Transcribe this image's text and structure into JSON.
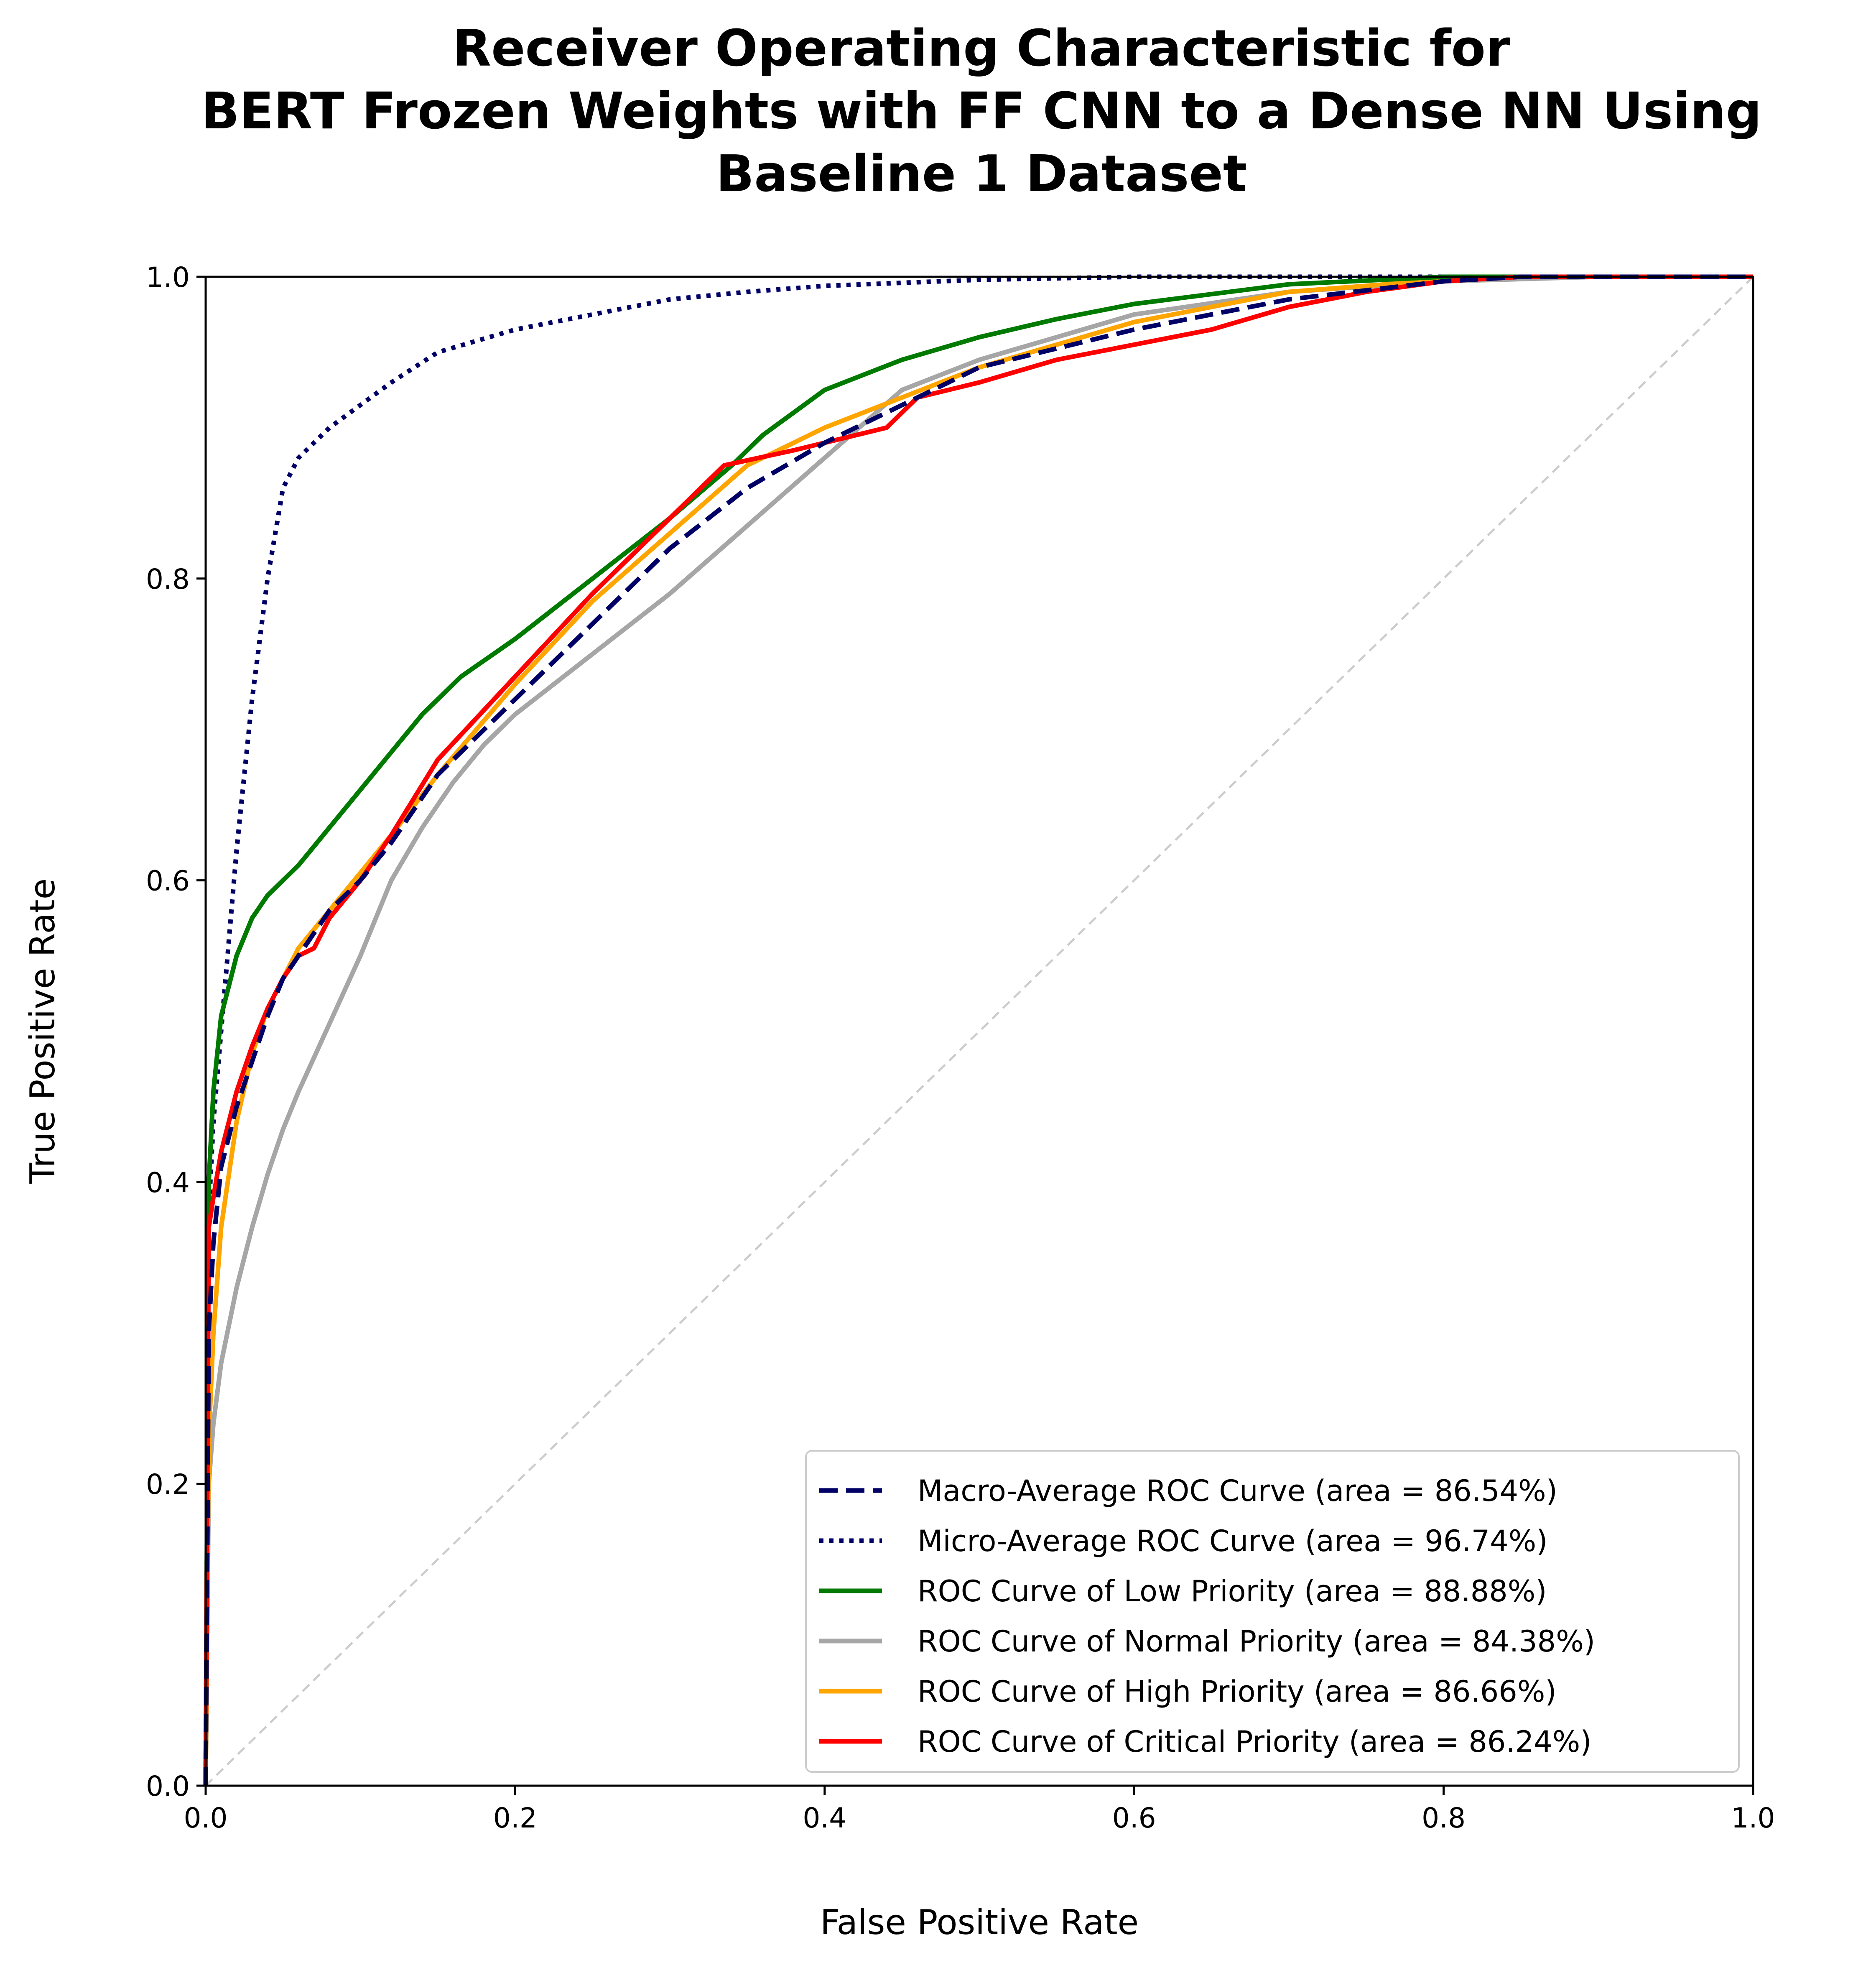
{
  "chart_data": {
    "type": "line",
    "title": [
      "Receiver Operating Characteristic for",
      "BERT Frozen Weights with FF CNN to a Dense NN Using",
      "Baseline 1 Dataset"
    ],
    "xlabel": "False Positive Rate",
    "ylabel": "True Positive Rate",
    "xlim": [
      0.0,
      1.0
    ],
    "ylim": [
      0.0,
      1.0
    ],
    "xticks": [
      "0.0",
      "0.2",
      "0.4",
      "0.6",
      "0.8",
      "1.0"
    ],
    "yticks": [
      "0.0",
      "0.2",
      "0.4",
      "0.6",
      "0.8",
      "1.0"
    ],
    "grid": false,
    "legend_position": "lower-right",
    "reference_line": {
      "x": [
        0,
        1
      ],
      "y": [
        0,
        1
      ],
      "color": "#cccccc",
      "style": "dashed"
    },
    "series": [
      {
        "name": "Macro-Average ROC Curve (area = 86.54%)",
        "color": "#000066",
        "style": "dashed",
        "x": [
          0,
          0.002,
          0.005,
          0.01,
          0.02,
          0.03,
          0.04,
          0.05,
          0.06,
          0.08,
          0.1,
          0.12,
          0.15,
          0.2,
          0.25,
          0.3,
          0.35,
          0.4,
          0.45,
          0.5,
          0.6,
          0.7,
          0.8,
          0.85,
          0.9,
          1.0
        ],
        "y": [
          0,
          0.3,
          0.36,
          0.41,
          0.45,
          0.48,
          0.51,
          0.535,
          0.55,
          0.58,
          0.6,
          0.625,
          0.67,
          0.72,
          0.77,
          0.82,
          0.86,
          0.89,
          0.915,
          0.94,
          0.965,
          0.985,
          0.997,
          1.0,
          1.0,
          1.0
        ]
      },
      {
        "name": "Micro-Average ROC Curve (area = 96.74%)",
        "color": "#000066",
        "style": "dotted",
        "x": [
          0,
          0.002,
          0.005,
          0.01,
          0.02,
          0.03,
          0.04,
          0.05,
          0.06,
          0.07,
          0.08,
          0.1,
          0.12,
          0.15,
          0.2,
          0.25,
          0.3,
          0.35,
          0.4,
          0.5,
          0.6,
          0.7,
          0.8,
          0.9,
          1.0
        ],
        "y": [
          0,
          0.38,
          0.44,
          0.5,
          0.62,
          0.72,
          0.8,
          0.86,
          0.88,
          0.89,
          0.9,
          0.915,
          0.93,
          0.95,
          0.965,
          0.975,
          0.985,
          0.99,
          0.994,
          0.998,
          1.0,
          1.0,
          1.0,
          1.0,
          1.0
        ]
      },
      {
        "name": "ROC Curve of Low Priority (area = 88.88%)",
        "color": "#007a00",
        "style": "solid",
        "x": [
          0,
          0.002,
          0.005,
          0.01,
          0.02,
          0.03,
          0.04,
          0.06,
          0.08,
          0.1,
          0.12,
          0.14,
          0.165,
          0.2,
          0.25,
          0.3,
          0.34,
          0.36,
          0.4,
          0.45,
          0.5,
          0.55,
          0.6,
          0.7,
          0.8,
          0.9,
          1.0
        ],
        "y": [
          0,
          0.4,
          0.46,
          0.51,
          0.55,
          0.575,
          0.59,
          0.61,
          0.635,
          0.66,
          0.685,
          0.71,
          0.735,
          0.76,
          0.8,
          0.84,
          0.875,
          0.895,
          0.925,
          0.945,
          0.96,
          0.972,
          0.982,
          0.995,
          1.0,
          1.0,
          1.0
        ]
      },
      {
        "name": "ROC Curve of Normal Priority (area = 84.38%)",
        "color": "#a6a6a6",
        "style": "solid",
        "x": [
          0,
          0.002,
          0.005,
          0.01,
          0.02,
          0.03,
          0.04,
          0.05,
          0.06,
          0.08,
          0.1,
          0.12,
          0.14,
          0.16,
          0.18,
          0.2,
          0.25,
          0.3,
          0.35,
          0.4,
          0.45,
          0.5,
          0.55,
          0.6,
          0.7,
          0.8,
          0.9,
          1.0
        ],
        "y": [
          0,
          0.2,
          0.24,
          0.28,
          0.33,
          0.37,
          0.405,
          0.435,
          0.46,
          0.505,
          0.55,
          0.6,
          0.635,
          0.665,
          0.69,
          0.71,
          0.75,
          0.79,
          0.835,
          0.88,
          0.925,
          0.945,
          0.96,
          0.975,
          0.99,
          0.997,
          1.0,
          1.0
        ]
      },
      {
        "name": "ROC Curve of High Priority (area = 86.66%)",
        "color": "#ffa500",
        "style": "solid",
        "x": [
          0,
          0.002,
          0.005,
          0.01,
          0.02,
          0.03,
          0.04,
          0.05,
          0.06,
          0.08,
          0.1,
          0.12,
          0.15,
          0.2,
          0.25,
          0.3,
          0.35,
          0.4,
          0.45,
          0.5,
          0.6,
          0.7,
          0.8,
          0.85,
          1.0
        ],
        "y": [
          0,
          0.23,
          0.3,
          0.37,
          0.44,
          0.485,
          0.515,
          0.535,
          0.555,
          0.58,
          0.605,
          0.63,
          0.67,
          0.73,
          0.785,
          0.83,
          0.875,
          0.9,
          0.92,
          0.94,
          0.97,
          0.99,
          0.998,
          1.0,
          1.0
        ]
      },
      {
        "name": "ROC Curve of Critical Priority (area = 86.24%)",
        "color": "#ff0000",
        "style": "solid",
        "x": [
          0,
          0.002,
          0.005,
          0.01,
          0.02,
          0.03,
          0.04,
          0.05,
          0.06,
          0.07,
          0.08,
          0.1,
          0.12,
          0.15,
          0.2,
          0.25,
          0.3,
          0.335,
          0.38,
          0.44,
          0.46,
          0.5,
          0.55,
          0.6,
          0.65,
          0.7,
          0.75,
          0.8,
          0.85,
          0.88,
          1.0
        ],
        "y": [
          0,
          0.37,
          0.39,
          0.42,
          0.46,
          0.49,
          0.515,
          0.535,
          0.55,
          0.555,
          0.575,
          0.6,
          0.63,
          0.68,
          0.735,
          0.79,
          0.84,
          0.875,
          0.885,
          0.9,
          0.92,
          0.93,
          0.945,
          0.955,
          0.965,
          0.98,
          0.99,
          0.997,
          1.0,
          1.0,
          1.0
        ]
      }
    ]
  }
}
